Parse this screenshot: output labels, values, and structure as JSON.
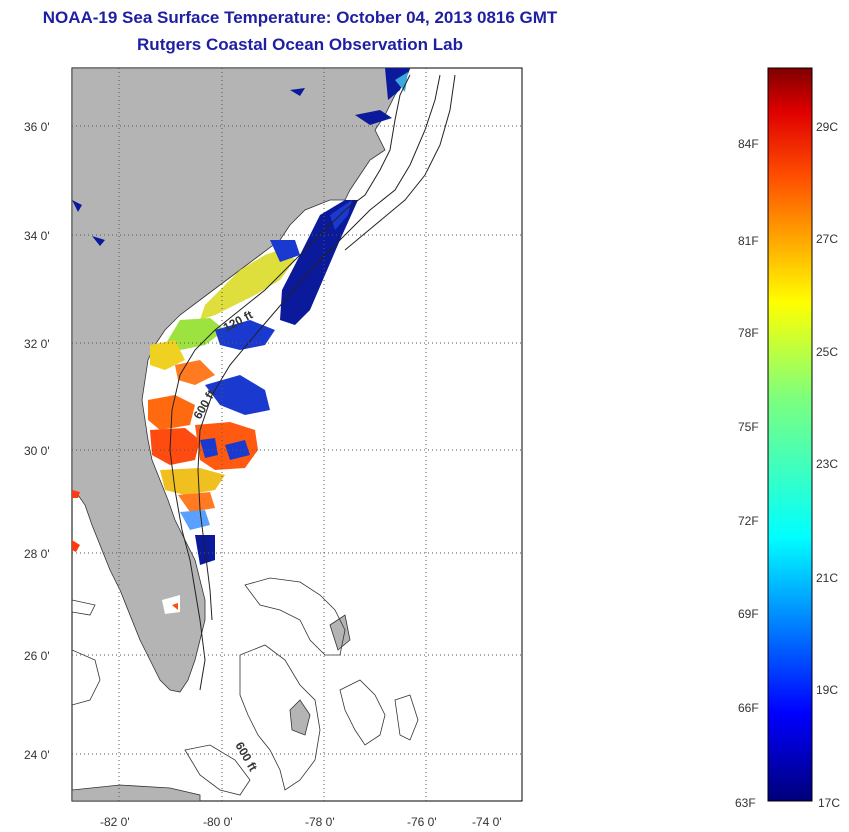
{
  "title": "NOAA-19 Sea Surface Temperature:  October 04, 2013 0816 GMT",
  "subtitle": "Rutgers Coastal Ocean Observation Lab",
  "map": {
    "lat_ticks": [
      "36 0'",
      "34 0'",
      "32 0'",
      "30 0'",
      "28 0'",
      "26 0'",
      "24 0'"
    ],
    "lon_ticks": [
      "-82 0'",
      "-80 0'",
      "-78 0'",
      "-76 0'",
      "-74 0'"
    ],
    "contour_labels": [
      "120 ft",
      "600 ft",
      "600 ft"
    ],
    "colors": {
      "land": "#b4b4b4",
      "ocean": "#ffffff",
      "cold": "#0a1a9a",
      "warm": "#ff5a10"
    }
  },
  "colorbar": {
    "fahrenheit": [
      "84F",
      "81F",
      "78F",
      "75F",
      "72F",
      "69F",
      "66F",
      "63F"
    ],
    "celsius": [
      "29C",
      "27C",
      "25C",
      "23C",
      "21C",
      "19C",
      "17C"
    ]
  }
}
